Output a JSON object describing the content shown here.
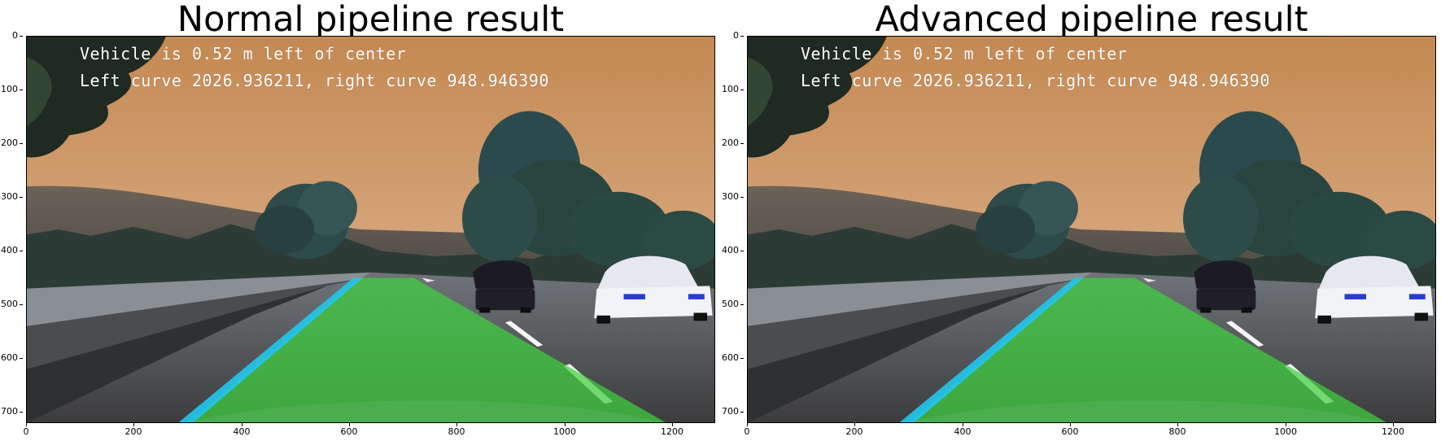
{
  "figure": {
    "panels": [
      {
        "title": "Normal pipeline result",
        "overlay": {
          "line1": "Vehicle is 0.52 m left of center",
          "line2": "Left curve 2026.936211, right curve 948.946390"
        }
      },
      {
        "title": "Advanced pipeline result",
        "overlay": {
          "line1": "Vehicle is 0.52 m left of center",
          "line2": "Left curve 2026.936211, right curve 948.946390"
        }
      }
    ],
    "y_ticks": [
      "0",
      "100",
      "200",
      "300",
      "400",
      "500",
      "600",
      "700"
    ],
    "x_ticks": [
      "0",
      "200",
      "400",
      "600",
      "800",
      "1000",
      "1200"
    ],
    "image_extent": {
      "width": 1280,
      "height": 720
    },
    "colors": {
      "lane_fill": "#3fd13f",
      "left_line": "#22c7ee",
      "right_line": "#ffffff",
      "sky": "#c48d56"
    }
  }
}
